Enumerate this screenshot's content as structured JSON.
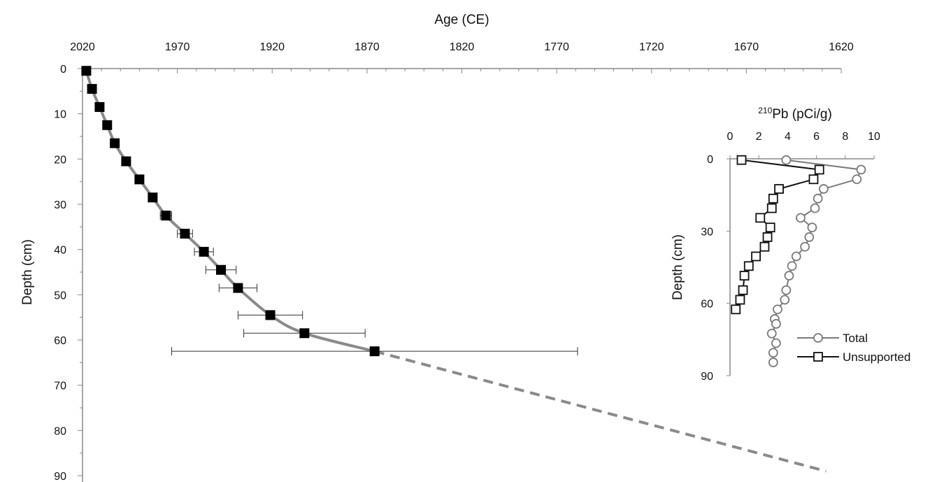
{
  "chart_data": [
    {
      "type": "scatter",
      "xlabel": "Age (CE)",
      "ylabel": "Depth (cm)",
      "x_ticks": [
        "2020",
        "1970",
        "1920",
        "1870",
        "1820",
        "1770",
        "1720",
        "1670",
        "1620"
      ],
      "y_ticks": [
        "0",
        "10",
        "20",
        "30",
        "40",
        "50",
        "60",
        "70",
        "80",
        "90"
      ],
      "xlim": [
        2020,
        1620
      ],
      "ylim": [
        0,
        90
      ],
      "x_reversed": true,
      "grid": false,
      "series": [
        {
          "points": [
            {
              "depth": 0.5,
              "age": 2018,
              "err": 0
            },
            {
              "depth": 4.5,
              "age": 2015,
              "err": 0
            },
            {
              "depth": 8.5,
              "age": 2011,
              "err": 0
            },
            {
              "depth": 12.5,
              "age": 2007,
              "err": 0
            },
            {
              "depth": 16.5,
              "age": 2003,
              "err": 0
            },
            {
              "depth": 20.5,
              "age": 1997,
              "err": 0
            },
            {
              "depth": 24.5,
              "age": 1990,
              "err": 0
            },
            {
              "depth": 28.5,
              "age": 1983,
              "err": 0
            },
            {
              "depth": 32.5,
              "age": 1976,
              "err": 3
            },
            {
              "depth": 36.5,
              "age": 1966,
              "err": 4
            },
            {
              "depth": 40.5,
              "age": 1956,
              "err": 5
            },
            {
              "depth": 44.5,
              "age": 1947,
              "err": 8
            },
            {
              "depth": 48.5,
              "age": 1938,
              "err": 10
            },
            {
              "depth": 54.5,
              "age": 1921,
              "err": 17
            },
            {
              "depth": 58.5,
              "age": 1903,
              "err": 32
            },
            {
              "depth": 62.5,
              "age": 1866,
              "err": 107
            }
          ],
          "extrapolation": [
            {
              "depth": 62.5,
              "age": 1866
            },
            {
              "depth": 89,
              "age": 1628
            }
          ]
        }
      ]
    },
    {
      "type": "line",
      "xlabel_superscript": "210",
      "xlabel": "Pb (pCi/g)",
      "ylabel": "Depth (cm)",
      "x_ticks": [
        "0",
        "2",
        "4",
        "6",
        "8",
        "10"
      ],
      "y_ticks": [
        "0",
        "30",
        "60",
        "90"
      ],
      "xlim": [
        0,
        10
      ],
      "ylim": [
        0,
        90
      ],
      "grid": false,
      "legend_position": "bottom-right",
      "series": [
        {
          "name": "Total",
          "marker": "circle",
          "color": "#7a7a7a",
          "points": [
            {
              "x": 3.9,
              "y": 0.5
            },
            {
              "x": 9.1,
              "y": 4.5
            },
            {
              "x": 8.8,
              "y": 8.5
            },
            {
              "x": 6.5,
              "y": 12.5
            },
            {
              "x": 6.1,
              "y": 16.5
            },
            {
              "x": 5.9,
              "y": 20.5
            },
            {
              "x": 4.9,
              "y": 24.5
            },
            {
              "x": 5.7,
              "y": 28.5
            },
            {
              "x": 5.5,
              "y": 32.5
            },
            {
              "x": 5.2,
              "y": 36.5
            },
            {
              "x": 4.6,
              "y": 40.5
            },
            {
              "x": 4.3,
              "y": 44.5
            },
            {
              "x": 4.1,
              "y": 48.5
            },
            {
              "x": 3.9,
              "y": 54.5
            },
            {
              "x": 3.8,
              "y": 58.5
            },
            {
              "x": 3.3,
              "y": 62.5
            },
            {
              "x": 3.1,
              "y": 66.5
            },
            {
              "x": 3.2,
              "y": 68.5
            },
            {
              "x": 2.9,
              "y": 72.5
            },
            {
              "x": 3.2,
              "y": 76.5
            },
            {
              "x": 3.0,
              "y": 80.5
            },
            {
              "x": 3.0,
              "y": 84.5
            }
          ]
        },
        {
          "name": "Unsupported",
          "marker": "square",
          "color": "#111111",
          "points": [
            {
              "x": 0.8,
              "y": 0.5
            },
            {
              "x": 6.2,
              "y": 4.5
            },
            {
              "x": 5.8,
              "y": 8.5
            },
            {
              "x": 3.4,
              "y": 12.5
            },
            {
              "x": 3.0,
              "y": 16.5
            },
            {
              "x": 2.9,
              "y": 20.5
            },
            {
              "x": 2.1,
              "y": 24.5
            },
            {
              "x": 2.8,
              "y": 28.5
            },
            {
              "x": 2.6,
              "y": 32.5
            },
            {
              "x": 2.4,
              "y": 36.5
            },
            {
              "x": 1.8,
              "y": 40.5
            },
            {
              "x": 1.3,
              "y": 44.5
            },
            {
              "x": 1.0,
              "y": 48.5
            },
            {
              "x": 0.9,
              "y": 54.5
            },
            {
              "x": 0.7,
              "y": 58.5
            },
            {
              "x": 0.4,
              "y": 62.5
            }
          ]
        }
      ]
    }
  ]
}
